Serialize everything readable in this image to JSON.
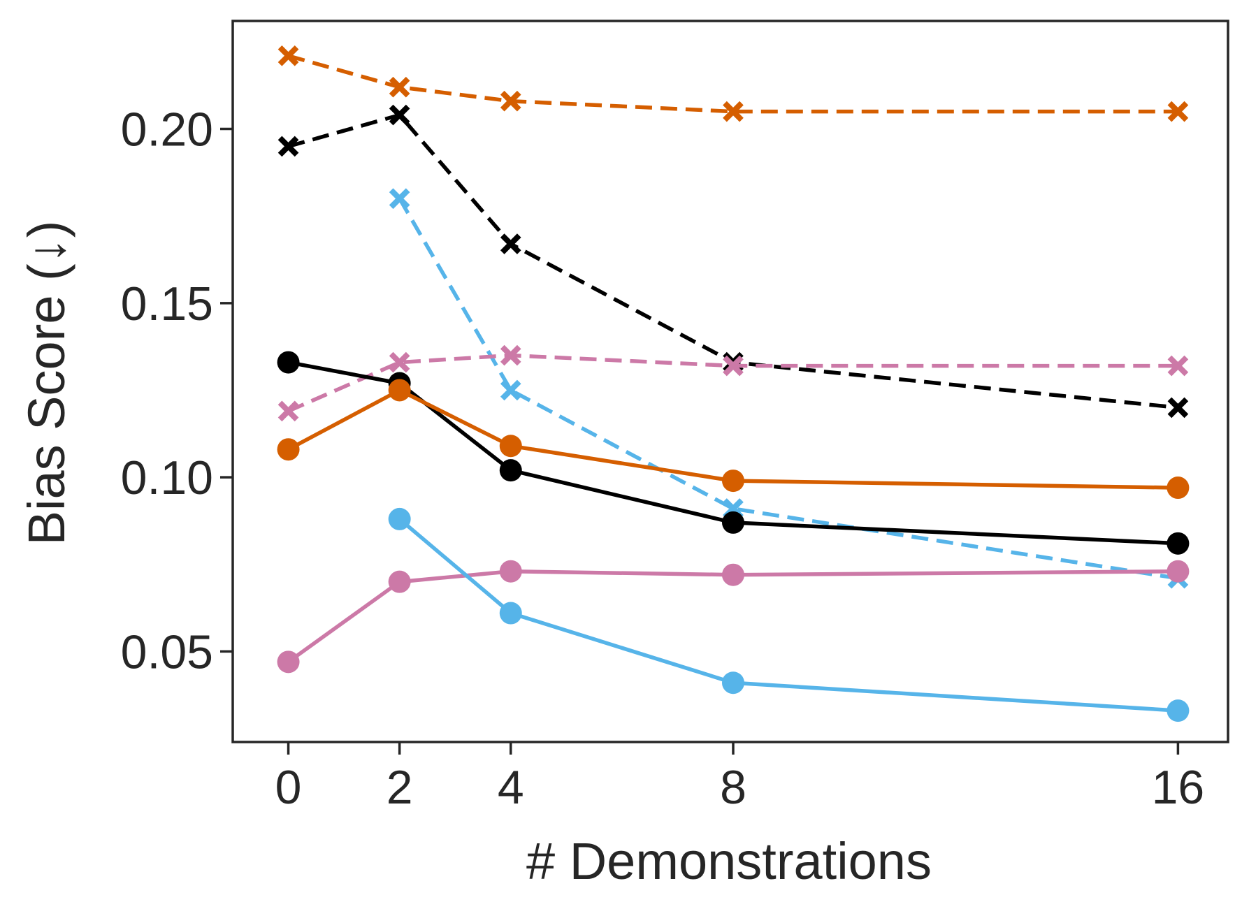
{
  "chart_data": {
    "type": "line",
    "xlabel": "# Demonstrations",
    "ylabel": "Bias Score (↓)",
    "x_ticks": [
      0,
      2,
      4,
      8,
      16
    ],
    "y_ticks": [
      0.05,
      0.1,
      0.15,
      0.2
    ],
    "y_tick_labels": [
      "0.05",
      "0.10",
      "0.15",
      "0.20"
    ],
    "xlim": [
      -1,
      16.9
    ],
    "ylim": [
      0.024,
      0.231
    ],
    "grid": false,
    "series": [
      {
        "color": "#d55e00",
        "line_style": "dashed",
        "marker": "x",
        "x": [
          0,
          2,
          4,
          8,
          16
        ],
        "y": [
          0.221,
          0.212,
          0.208,
          0.205,
          0.205
        ]
      },
      {
        "color": "#000000",
        "line_style": "dashed",
        "marker": "x",
        "x": [
          0,
          2,
          4,
          8,
          16
        ],
        "y": [
          0.195,
          0.204,
          0.167,
          0.133,
          0.12
        ]
      },
      {
        "color": "#56b4e9",
        "line_style": "dashed",
        "marker": "x",
        "x": [
          2,
          4,
          8,
          16
        ],
        "y": [
          0.18,
          0.125,
          0.091,
          0.071
        ]
      },
      {
        "color": "#cc79a7",
        "line_style": "dashed",
        "marker": "x",
        "x": [
          0,
          2,
          4,
          8,
          16
        ],
        "y": [
          0.119,
          0.133,
          0.135,
          0.132,
          0.132
        ]
      },
      {
        "color": "#000000",
        "line_style": "solid",
        "marker": "o",
        "x": [
          0,
          2,
          4,
          8,
          16
        ],
        "y": [
          0.133,
          0.127,
          0.102,
          0.087,
          0.081
        ]
      },
      {
        "color": "#d55e00",
        "line_style": "solid",
        "marker": "o",
        "x": [
          0,
          2,
          4,
          8,
          16
        ],
        "y": [
          0.108,
          0.125,
          0.109,
          0.099,
          0.097
        ]
      },
      {
        "color": "#cc79a7",
        "line_style": "solid",
        "marker": "o",
        "x": [
          0,
          2,
          4,
          8,
          16
        ],
        "y": [
          0.047,
          0.07,
          0.073,
          0.072,
          0.073
        ]
      },
      {
        "color": "#56b4e9",
        "line_style": "solid",
        "marker": "o",
        "x": [
          2,
          4,
          8,
          16
        ],
        "y": [
          0.088,
          0.061,
          0.041,
          0.033
        ]
      }
    ]
  }
}
